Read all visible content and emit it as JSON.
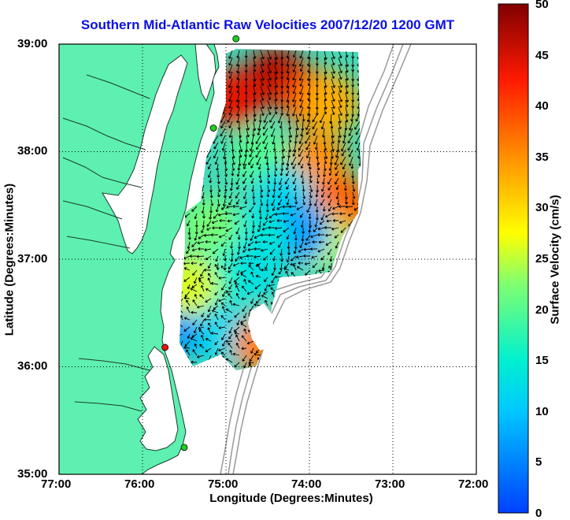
{
  "title": "Southern Mid-Atlantic Raw Velocities 2007/12/20 1200 GMT",
  "xlabel": "Longitude (Degrees:Minutes)",
  "ylabel": "Latitude (Degrees:Minutes)",
  "x_ticks": [
    "77:00",
    "76:00",
    "75:00",
    "74:00",
    "73:00",
    "72:00"
  ],
  "y_ticks": [
    "39:00",
    "38:00",
    "37:00",
    "36:00",
    "35:00"
  ],
  "colorbar": {
    "label": "Surface Velocity (cm/s)",
    "ticks": [
      "50",
      "45",
      "40",
      "35",
      "30",
      "25",
      "20",
      "15",
      "10",
      "5",
      "0"
    ],
    "range": [
      0,
      50
    ],
    "colormap": "jet"
  },
  "colors": {
    "land": "#5ef0b0",
    "ocean": "#ffffff",
    "title": "#0a10e6",
    "bathymetry": "#999999",
    "arrows": "#000000"
  },
  "chart_data": {
    "type": "heatmap",
    "title": "Southern Mid-Atlantic Raw Velocities 2007/12/20 1200 GMT",
    "xlabel": "Longitude (Degrees:Minutes)",
    "ylabel": "Latitude (Degrees:Minutes)",
    "xlim": [
      -77,
      -72
    ],
    "ylim": [
      35,
      39
    ],
    "grid": "dotted",
    "colorbar_label": "Surface Velocity (cm/s)",
    "color_range": [
      0,
      50
    ],
    "stations": [
      {
        "lon": -74.88,
        "lat": 39.05,
        "color": "#22cc22"
      },
      {
        "lon": -75.15,
        "lat": 38.22,
        "color": "#22cc22"
      },
      {
        "lon": -75.73,
        "lat": 36.18,
        "color": "#ee1111"
      },
      {
        "lon": -75.5,
        "lat": 35.25,
        "color": "#22cc22"
      }
    ],
    "velocity_regions": [
      {
        "lon": -74.4,
        "lat": 38.7,
        "speed": 47
      },
      {
        "lon": -74.9,
        "lat": 38.5,
        "speed": 44
      },
      {
        "lon": -74.0,
        "lat": 38.5,
        "speed": 40
      },
      {
        "lon": -73.75,
        "lat": 38.45,
        "speed": 33
      },
      {
        "lon": -73.9,
        "lat": 37.9,
        "speed": 35
      },
      {
        "lon": -73.6,
        "lat": 37.5,
        "speed": 38
      },
      {
        "lon": -73.9,
        "lat": 37.2,
        "speed": 26
      },
      {
        "lon": -74.6,
        "lat": 37.95,
        "speed": 20
      },
      {
        "lon": -74.3,
        "lat": 37.6,
        "speed": 12
      },
      {
        "lon": -74.1,
        "lat": 37.25,
        "speed": 7
      },
      {
        "lon": -74.6,
        "lat": 37.2,
        "speed": 14
      },
      {
        "lon": -75.2,
        "lat": 37.3,
        "speed": 22
      },
      {
        "lon": -74.7,
        "lat": 36.9,
        "speed": 13
      },
      {
        "lon": -75.2,
        "lat": 36.8,
        "speed": 16
      },
      {
        "lon": -75.4,
        "lat": 36.4,
        "speed": 6
      },
      {
        "lon": -75.0,
        "lat": 36.3,
        "speed": 12
      },
      {
        "lon": -74.55,
        "lat": 36.2,
        "speed": 36
      },
      {
        "lon": -75.45,
        "lat": 36.75,
        "speed": 26
      }
    ]
  }
}
